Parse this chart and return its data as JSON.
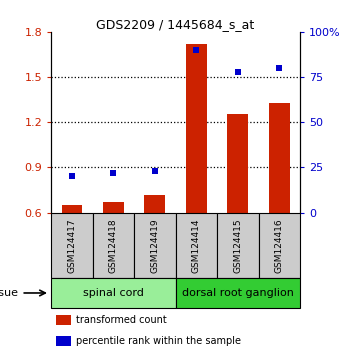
{
  "title": "GDS2209 / 1445684_s_at",
  "samples": [
    "GSM124417",
    "GSM124418",
    "GSM124419",
    "GSM124414",
    "GSM124415",
    "GSM124416"
  ],
  "transformed_counts": [
    0.653,
    0.668,
    0.718,
    1.718,
    1.252,
    1.33
  ],
  "percentile_ranks": [
    20,
    22,
    23,
    90,
    78,
    80
  ],
  "tissue_groups": [
    {
      "label": "spinal cord",
      "n": 3,
      "color": "#99ee99"
    },
    {
      "label": "dorsal root ganglion",
      "n": 3,
      "color": "#33cc33"
    }
  ],
  "left_ylim": [
    0.6,
    1.8
  ],
  "left_yticks": [
    0.6,
    0.9,
    1.2,
    1.5,
    1.8
  ],
  "right_ylim": [
    0,
    100
  ],
  "right_yticks": [
    0,
    25,
    50,
    75,
    100
  ],
  "right_yticklabels": [
    "0",
    "25",
    "50",
    "75",
    "100%"
  ],
  "bar_color": "#cc2200",
  "scatter_color": "#0000cc",
  "bar_width": 0.5,
  "bar_bottom": 0.6,
  "dotted_lines": [
    0.9,
    1.2,
    1.5
  ],
  "legend_items": [
    {
      "label": "transformed count",
      "color": "#cc2200"
    },
    {
      "label": "percentile rank within the sample",
      "color": "#0000cc"
    }
  ],
  "tissue_label": "tissue",
  "sample_box_color": "#cccccc",
  "fig_width": 3.41,
  "fig_height": 3.54
}
